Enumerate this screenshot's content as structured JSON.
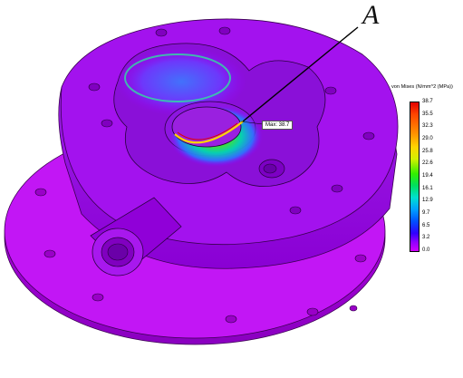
{
  "annotation": {
    "label": "A"
  },
  "legend": {
    "title": "von Mises (N/mm^2 (MPa))",
    "ticks": [
      "38.7",
      "35.5",
      "32.3",
      "29.0",
      "25.8",
      "22.6",
      "19.4",
      "16.1",
      "12.9",
      "9.7",
      "6.5",
      "3.2",
      "0.0"
    ]
  },
  "max_marker": {
    "text": "Max: 38.7"
  },
  "colors": {
    "low_stress": "#b400e6",
    "high_stress": "#e20000",
    "background": "#ffffff"
  }
}
